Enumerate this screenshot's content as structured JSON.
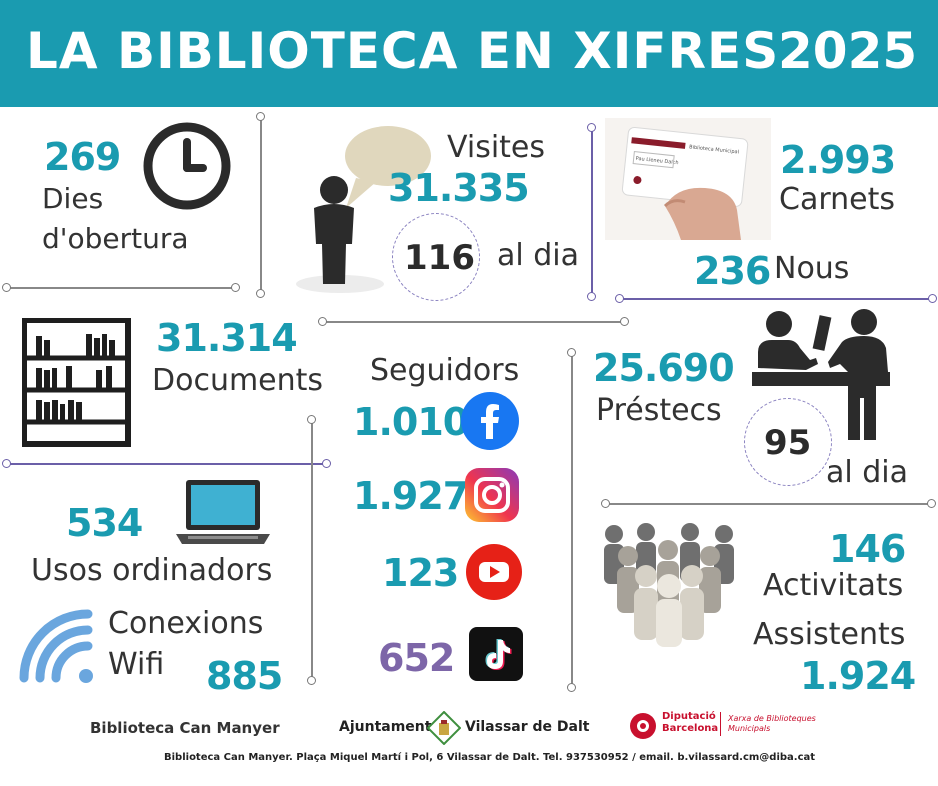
{
  "header": {
    "title": "LA BIBLIOTECA EN XIFRES",
    "year": "2025"
  },
  "opening": {
    "value": "269",
    "label_line1": "Dies",
    "label_line2": "d'obertura"
  },
  "visits": {
    "label": "Visites",
    "value": "31.335",
    "per_day_value": "116",
    "per_day_label": "al dia"
  },
  "cards": {
    "value": "2.993",
    "label": "Carnets",
    "new_value": "236",
    "new_label": "Nous",
    "card_text_1": "Biblioteca Municipal",
    "card_text_2": "Pau Lleneu Dalch"
  },
  "documents": {
    "value": "31.314",
    "label": "Documents"
  },
  "followers": {
    "label": "Seguidors",
    "items": [
      {
        "value": "1.010",
        "network": "facebook-icon",
        "color": "#1877f2"
      },
      {
        "value": "1.927",
        "network": "instagram-icon",
        "color": "#d6249f"
      },
      {
        "value": "123",
        "network": "youtube-icon",
        "color": "#e62117"
      },
      {
        "value": "652",
        "network": "tiktok-icon",
        "color": "#111111"
      }
    ]
  },
  "loans": {
    "value": "25.690",
    "label": "Préstecs",
    "per_day_value": "95",
    "per_day_label": "al dia"
  },
  "computers": {
    "value": "534",
    "label": "Usos ordinadors"
  },
  "wifi": {
    "label_line1": "Conexions",
    "label_line2": "Wifi",
    "value": "885"
  },
  "activities": {
    "value": "146",
    "label": "Activitats",
    "attendees_label": "Assistents",
    "attendees_value": "1.924"
  },
  "logos": {
    "library": "Biblioteca Can Manyer",
    "town_left": "Ajuntament",
    "town_right": "Vilassar de Dalt",
    "diba_line1": "Diputació",
    "diba_line2": "Barcelona",
    "network_line1": "Xarxa de Biblioteques",
    "network_line2": "Municipals"
  },
  "footer": "Biblioteca Can Manyer. Plaça Miquel Martí i Pol, 6 Vilassar de Dalt. Tel. 937530952 / email. b.vilassard.cm@diba.cat",
  "colors": {
    "accent": "#1a9bb0",
    "purple": "#7d66a8",
    "dark": "#2b2b2b"
  }
}
